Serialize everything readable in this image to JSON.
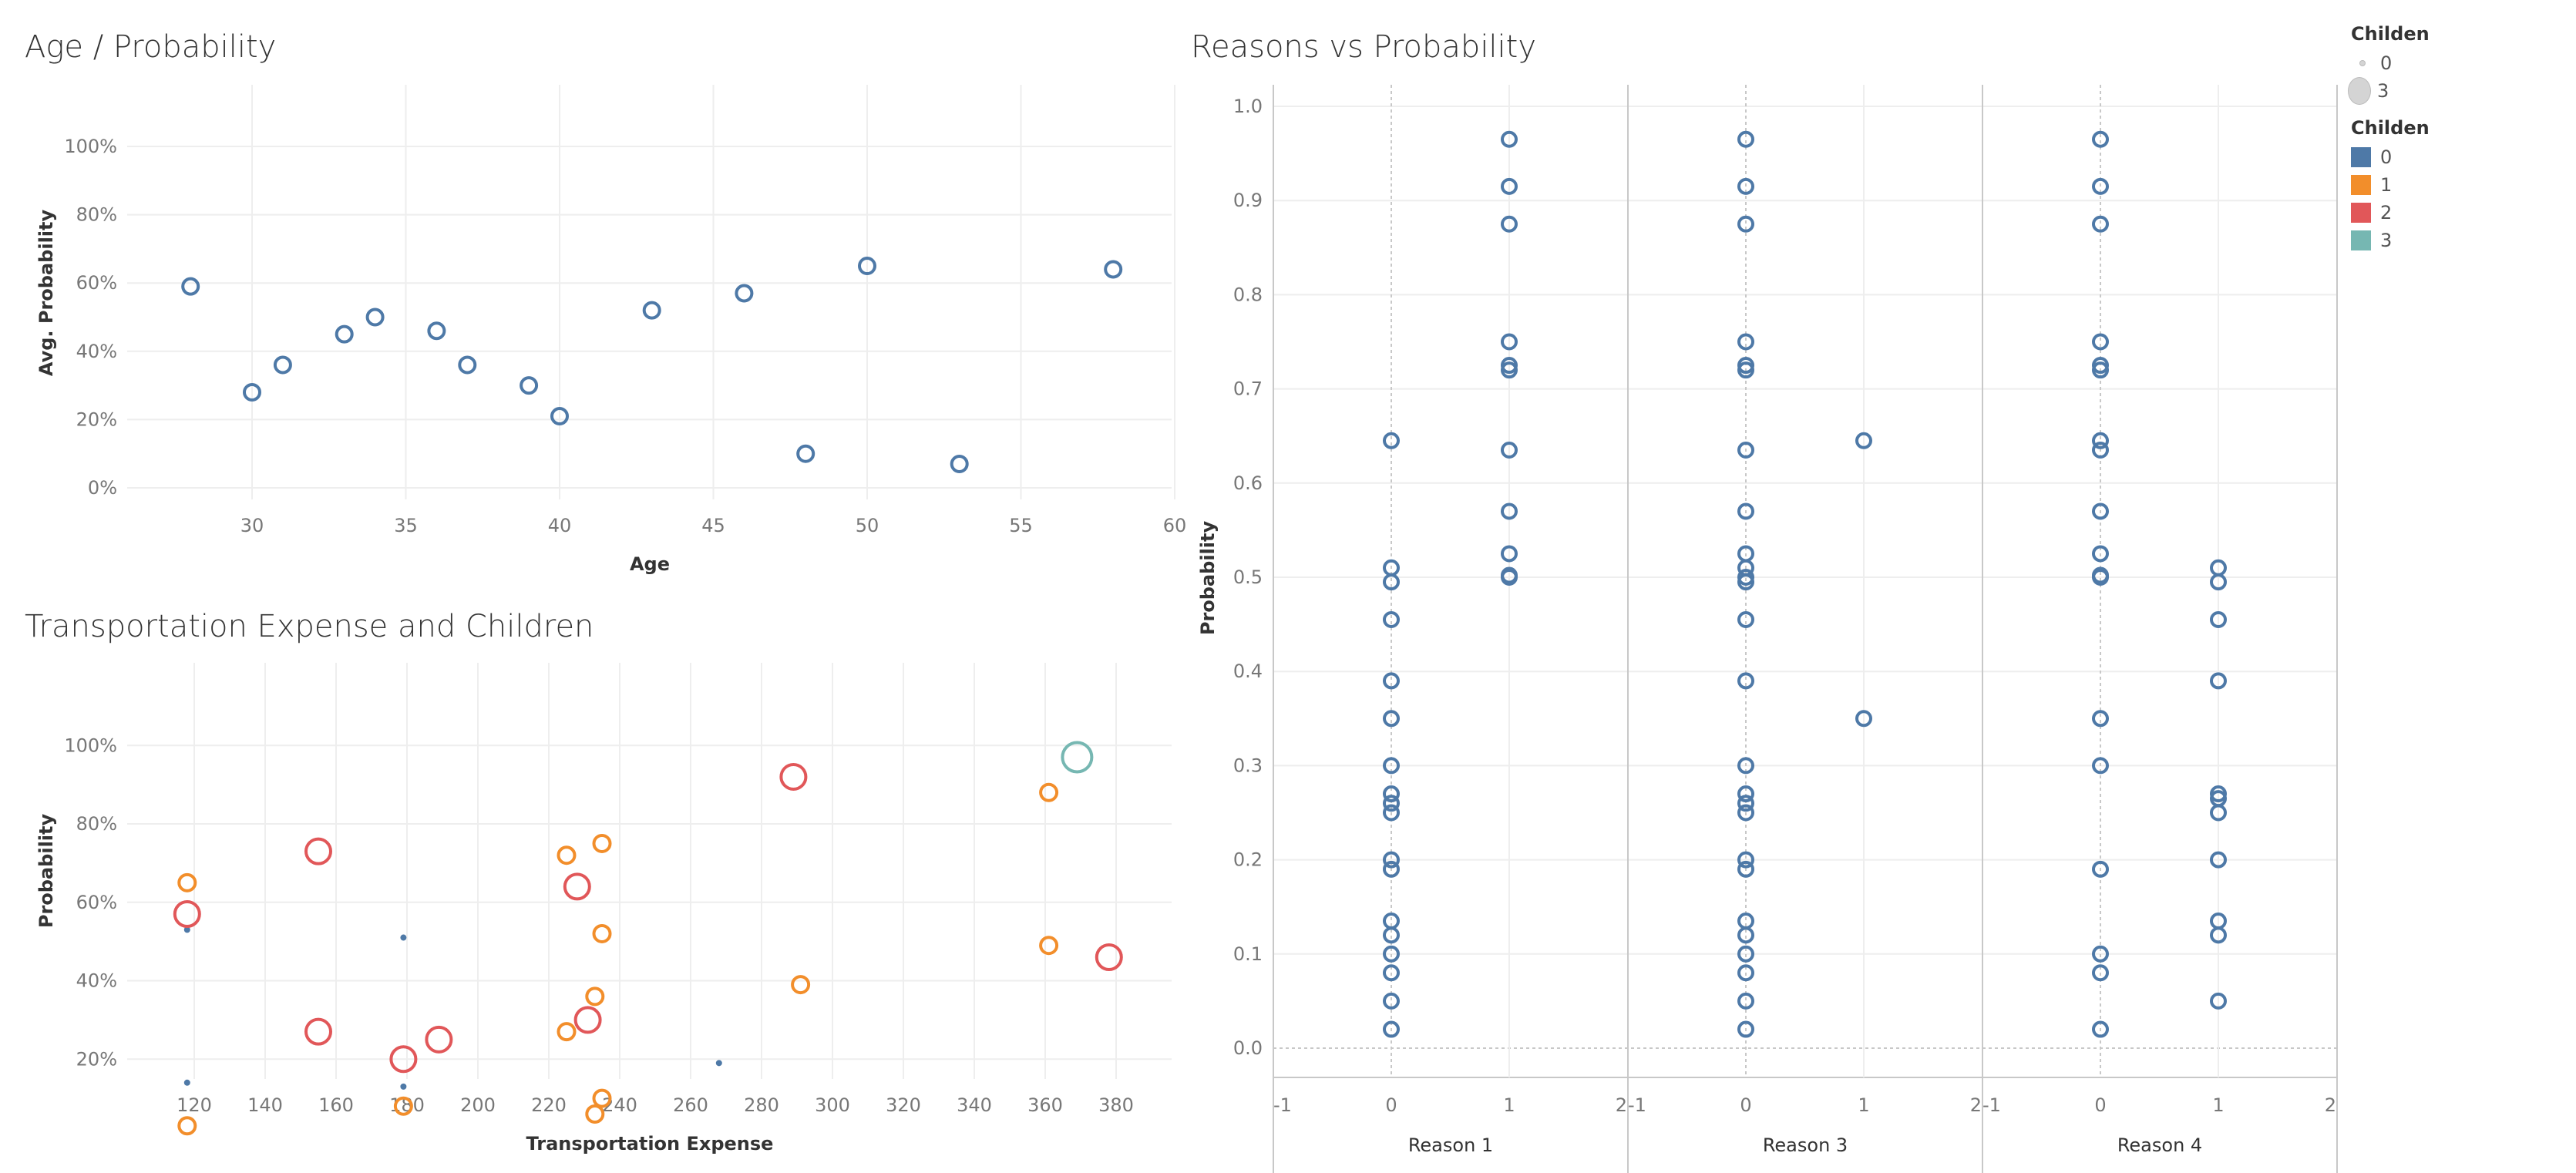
{
  "titles": {
    "age": "Age / Probability",
    "transport": "Transportation Expense and Children",
    "reasons": "Reasons vs Probability"
  },
  "legends": {
    "size": {
      "title": "Childen",
      "items": [
        {
          "label": "0"
        },
        {
          "label": "3"
        }
      ]
    },
    "color": {
      "title": "Childen",
      "items": [
        {
          "label": "0",
          "color": "#4e79a7"
        },
        {
          "label": "1",
          "color": "#f28e2b"
        },
        {
          "label": "2",
          "color": "#e15759"
        },
        {
          "label": "3",
          "color": "#76b7b2"
        }
      ]
    }
  },
  "chart_data": [
    {
      "type": "scatter",
      "title": "Age / Probability",
      "xlabel": "Age",
      "ylabel": "Avg. Probability",
      "xlim": [
        26,
        60
      ],
      "ylim": [
        0,
        1
      ],
      "xticks": [
        "30",
        "35",
        "40",
        "45",
        "50",
        "55",
        "60"
      ],
      "yticks": [
        "0%",
        "20%",
        "40%",
        "60%",
        "80%",
        "100%"
      ],
      "color": "#4e79a7",
      "points": [
        {
          "x": 28,
          "y": 0.59
        },
        {
          "x": 30,
          "y": 0.28
        },
        {
          "x": 31,
          "y": 0.36
        },
        {
          "x": 33,
          "y": 0.45
        },
        {
          "x": 34,
          "y": 0.5
        },
        {
          "x": 36,
          "y": 0.46
        },
        {
          "x": 37,
          "y": 0.36
        },
        {
          "x": 39,
          "y": 0.3
        },
        {
          "x": 40,
          "y": 0.21
        },
        {
          "x": 43,
          "y": 0.52
        },
        {
          "x": 46,
          "y": 0.57
        },
        {
          "x": 48,
          "y": 0.1
        },
        {
          "x": 50,
          "y": 0.65
        },
        {
          "x": 53,
          "y": 0.07
        },
        {
          "x": 58,
          "y": 0.64
        }
      ]
    },
    {
      "type": "scatter",
      "title": "Transportation Expense and Children",
      "xlabel": "Transportation Expense",
      "ylabel": "Probability",
      "xlim": [
        101,
        394
      ],
      "ylim": [
        0,
        1
      ],
      "xticks": [
        "120",
        "140",
        "160",
        "180",
        "200",
        "220",
        "240",
        "260",
        "280",
        "300",
        "320",
        "340",
        "360",
        "380"
      ],
      "yticks": [
        "20%",
        "40%",
        "60%",
        "80%",
        "100%"
      ],
      "colors": {
        "0": "#4e79a7",
        "1": "#f28e2b",
        "2": "#e15759",
        "3": "#76b7b2"
      },
      "points": [
        {
          "x": 118,
          "y": 0.53,
          "children": 0
        },
        {
          "x": 118,
          "y": 0.14,
          "children": 0
        },
        {
          "x": 179,
          "y": 0.51,
          "children": 0
        },
        {
          "x": 179,
          "y": 0.13,
          "children": 0
        },
        {
          "x": 268,
          "y": 0.19,
          "children": 0
        },
        {
          "x": 118,
          "y": 0.65,
          "children": 1
        },
        {
          "x": 118,
          "y": 0.03,
          "children": 1
        },
        {
          "x": 179,
          "y": 0.08,
          "children": 1
        },
        {
          "x": 225,
          "y": 0.72,
          "children": 1
        },
        {
          "x": 235,
          "y": 0.75,
          "children": 1
        },
        {
          "x": 235,
          "y": 0.52,
          "children": 1
        },
        {
          "x": 233,
          "y": 0.36,
          "children": 1
        },
        {
          "x": 225,
          "y": 0.27,
          "children": 1
        },
        {
          "x": 235,
          "y": 0.1,
          "children": 1
        },
        {
          "x": 233,
          "y": 0.06,
          "children": 1
        },
        {
          "x": 291,
          "y": 0.39,
          "children": 1
        },
        {
          "x": 361,
          "y": 0.88,
          "children": 1
        },
        {
          "x": 361,
          "y": 0.49,
          "children": 1
        },
        {
          "x": 118,
          "y": 0.57,
          "children": 2
        },
        {
          "x": 155,
          "y": 0.73,
          "children": 2
        },
        {
          "x": 155,
          "y": 0.27,
          "children": 2
        },
        {
          "x": 179,
          "y": 0.2,
          "children": 2
        },
        {
          "x": 189,
          "y": 0.25,
          "children": 2
        },
        {
          "x": 228,
          "y": 0.64,
          "children": 2
        },
        {
          "x": 231,
          "y": 0.3,
          "children": 2
        },
        {
          "x": 289,
          "y": 0.92,
          "children": 2
        },
        {
          "x": 378,
          "y": 0.46,
          "children": 2
        },
        {
          "x": 369,
          "y": 0.97,
          "children": 3
        }
      ]
    },
    {
      "type": "scatter",
      "title": "Reasons vs Probability",
      "ylabel": "Probability",
      "ylim": [
        0,
        1
      ],
      "yticks": [
        "0.0",
        "0.1",
        "0.2",
        "0.3",
        "0.4",
        "0.5",
        "0.6",
        "0.7",
        "0.8",
        "0.9",
        "1.0"
      ],
      "panel_xticks": [
        "-1",
        "0",
        "1",
        "2"
      ],
      "color": "#4e79a7",
      "panels": [
        {
          "label": "Reason 1",
          "x0": [
            0.02,
            0.05,
            0.08,
            0.1,
            0.12,
            0.135,
            0.19,
            0.2,
            0.25,
            0.26,
            0.27,
            0.3,
            0.35,
            0.39,
            0.455,
            0.495,
            0.51,
            0.645
          ],
          "x1": [
            0.5,
            0.502,
            0.525,
            0.57,
            0.635,
            0.72,
            0.725,
            0.75,
            0.875,
            0.915,
            0.965
          ]
        },
        {
          "label": "Reason 3",
          "x0": [
            0.02,
            0.05,
            0.08,
            0.1,
            0.12,
            0.135,
            0.19,
            0.2,
            0.25,
            0.26,
            0.27,
            0.3,
            0.39,
            0.455,
            0.495,
            0.5,
            0.51,
            0.525,
            0.57,
            0.635,
            0.72,
            0.725,
            0.75,
            0.875,
            0.915,
            0.965
          ],
          "x1": [
            0.35,
            0.645
          ]
        },
        {
          "label": "Reason 4",
          "x0": [
            0.02,
            0.08,
            0.1,
            0.19,
            0.3,
            0.35,
            0.5,
            0.502,
            0.525,
            0.57,
            0.635,
            0.645,
            0.72,
            0.725,
            0.75,
            0.875,
            0.915,
            0.965
          ],
          "x1": [
            0.05,
            0.12,
            0.135,
            0.2,
            0.25,
            0.265,
            0.27,
            0.39,
            0.455,
            0.495,
            0.51
          ]
        }
      ]
    }
  ]
}
